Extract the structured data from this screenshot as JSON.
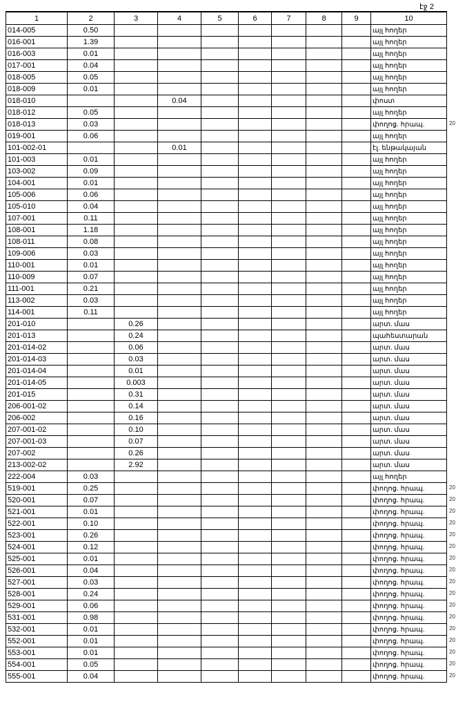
{
  "page_number": "էջ 2",
  "columns": [
    "1",
    "2",
    "3",
    "4",
    "5",
    "6",
    "7",
    "8",
    "9",
    "10"
  ],
  "rows": [
    [
      "014-005",
      "0.50",
      "",
      "",
      "",
      "",
      "",
      "",
      "",
      "այլ հողեր",
      ""
    ],
    [
      "016-001",
      "1.39",
      "",
      "",
      "",
      "",
      "",
      "",
      "",
      "այլ հողեր",
      ""
    ],
    [
      "016-003",
      "0.01",
      "",
      "",
      "",
      "",
      "",
      "",
      "",
      "այլ հողեր",
      ""
    ],
    [
      "017-001",
      "0.04",
      "",
      "",
      "",
      "",
      "",
      "",
      "",
      "այլ հողեր",
      ""
    ],
    [
      "018-005",
      "0.05",
      "",
      "",
      "",
      "",
      "",
      "",
      "",
      "այլ հողեր",
      ""
    ],
    [
      "018-009",
      "0.01",
      "",
      "",
      "",
      "",
      "",
      "",
      "",
      "այլ հողեր",
      ""
    ],
    [
      "018-010",
      "",
      "",
      "0.04",
      "",
      "",
      "",
      "",
      "",
      "փոստ",
      ""
    ],
    [
      "018-012",
      "0.05",
      "",
      "",
      "",
      "",
      "",
      "",
      "",
      "այլ հողեր",
      ""
    ],
    [
      "018-013",
      "0.03",
      "",
      "",
      "",
      "",
      "",
      "",
      "",
      "փողոց. հրապ.",
      "20"
    ],
    [
      "019-001",
      "0.06",
      "",
      "",
      "",
      "",
      "",
      "",
      "",
      "այլ հողեր",
      ""
    ],
    [
      "101-002-01",
      "",
      "",
      "0.01",
      "",
      "",
      "",
      "",
      "",
      "էլ. ենթակայան",
      ""
    ],
    [
      "101-003",
      "0.01",
      "",
      "",
      "",
      "",
      "",
      "",
      "",
      "այլ հողեր",
      ""
    ],
    [
      "103-002",
      "0.09",
      "",
      "",
      "",
      "",
      "",
      "",
      "",
      "այլ հողեր",
      ""
    ],
    [
      "104-001",
      "0.01",
      "",
      "",
      "",
      "",
      "",
      "",
      "",
      "այլ հողեր",
      ""
    ],
    [
      "105-006",
      "0.06",
      "",
      "",
      "",
      "",
      "",
      "",
      "",
      "այլ հողեր",
      ""
    ],
    [
      "105-010",
      "0.04",
      "",
      "",
      "",
      "",
      "",
      "",
      "",
      "այլ հողեր",
      ""
    ],
    [
      "107-001",
      "0.11",
      "",
      "",
      "",
      "",
      "",
      "",
      "",
      "այլ հողեր",
      ""
    ],
    [
      "108-001",
      "1.18",
      "",
      "",
      "",
      "",
      "",
      "",
      "",
      "այլ հողեր",
      ""
    ],
    [
      "108-011",
      "0.08",
      "",
      "",
      "",
      "",
      "",
      "",
      "",
      "այլ հողեր",
      ""
    ],
    [
      "109-006",
      "0.03",
      "",
      "",
      "",
      "",
      "",
      "",
      "",
      "այլ հողեր",
      ""
    ],
    [
      "110-001",
      "0.01",
      "",
      "",
      "",
      "",
      "",
      "",
      "",
      "այլ հողեր",
      ""
    ],
    [
      "110-009",
      "0.07",
      "",
      "",
      "",
      "",
      "",
      "",
      "",
      "այլ հողեր",
      ""
    ],
    [
      "111-001",
      "0.21",
      "",
      "",
      "",
      "",
      "",
      "",
      "",
      "այլ հողեր",
      ""
    ],
    [
      "113-002",
      "0.03",
      "",
      "",
      "",
      "",
      "",
      "",
      "",
      "այլ հողեր",
      ""
    ],
    [
      "114-001",
      "0.11",
      "",
      "",
      "",
      "",
      "",
      "",
      "",
      "այլ հողեր",
      ""
    ],
    [
      "201-010",
      "",
      "0.26",
      "",
      "",
      "",
      "",
      "",
      "",
      "արտ. մաս",
      ""
    ],
    [
      "201-013",
      "",
      "0.24",
      "",
      "",
      "",
      "",
      "",
      "",
      "պահեստարան",
      ""
    ],
    [
      "201-014-02",
      "",
      "0.06",
      "",
      "",
      "",
      "",
      "",
      "",
      "արտ. մաս",
      ""
    ],
    [
      "201-014-03",
      "",
      "0.03",
      "",
      "",
      "",
      "",
      "",
      "",
      "արտ. մաս",
      ""
    ],
    [
      "201-014-04",
      "",
      "0.01",
      "",
      "",
      "",
      "",
      "",
      "",
      "արտ. մաս",
      ""
    ],
    [
      "201-014-05",
      "",
      "0.003",
      "",
      "",
      "",
      "",
      "",
      "",
      "արտ. մաս",
      ""
    ],
    [
      "201-015",
      "",
      "0.31",
      "",
      "",
      "",
      "",
      "",
      "",
      "արտ. մաս",
      ""
    ],
    [
      "206-001-02",
      "",
      "0.14",
      "",
      "",
      "",
      "",
      "",
      "",
      "արտ. մաս",
      ""
    ],
    [
      "206-002",
      "",
      "0.16",
      "",
      "",
      "",
      "",
      "",
      "",
      "արտ. մաս",
      ""
    ],
    [
      "207-001-02",
      "",
      "0.10",
      "",
      "",
      "",
      "",
      "",
      "",
      "արտ. մաս",
      ""
    ],
    [
      "207-001-03",
      "",
      "0.07",
      "",
      "",
      "",
      "",
      "",
      "",
      "արտ. մաս",
      ""
    ],
    [
      "207-002",
      "",
      "0.26",
      "",
      "",
      "",
      "",
      "",
      "",
      "արտ. մաս",
      ""
    ],
    [
      "213-002-02",
      "",
      "2.92",
      "",
      "",
      "",
      "",
      "",
      "",
      "արտ. մաս",
      ""
    ],
    [
      "222-004",
      "0.03",
      "",
      "",
      "",
      "",
      "",
      "",
      "",
      "այլ հողեր",
      ""
    ],
    [
      "519-001",
      "0.25",
      "",
      "",
      "",
      "",
      "",
      "",
      "",
      "փողոց. հրապ.",
      "20"
    ],
    [
      "520-001",
      "0.07",
      "",
      "",
      "",
      "",
      "",
      "",
      "",
      "փողոց. հրապ.",
      "20"
    ],
    [
      "521-001",
      "0.01",
      "",
      "",
      "",
      "",
      "",
      "",
      "",
      "փողոց. հրապ.",
      "20"
    ],
    [
      "522-001",
      "0.10",
      "",
      "",
      "",
      "",
      "",
      "",
      "",
      "փողոց. հրապ.",
      "20"
    ],
    [
      "523-001",
      "0.26",
      "",
      "",
      "",
      "",
      "",
      "",
      "",
      "փողոց. հրապ.",
      "20"
    ],
    [
      "524-001",
      "0.12",
      "",
      "",
      "",
      "",
      "",
      "",
      "",
      "փողոց. հրապ.",
      "20"
    ],
    [
      "525-001",
      "0.01",
      "",
      "",
      "",
      "",
      "",
      "",
      "",
      "փողոց. հրապ.",
      "20"
    ],
    [
      "526-001",
      "0.04",
      "",
      "",
      "",
      "",
      "",
      "",
      "",
      "փողոց. հրապ.",
      "20"
    ],
    [
      "527-001",
      "0.03",
      "",
      "",
      "",
      "",
      "",
      "",
      "",
      "փողոց. հրապ.",
      "20"
    ],
    [
      "528-001",
      "0.24",
      "",
      "",
      "",
      "",
      "",
      "",
      "",
      "փողոց. հրապ.",
      "20"
    ],
    [
      "529-001",
      "0.06",
      "",
      "",
      "",
      "",
      "",
      "",
      "",
      "փողոց. հրապ.",
      "20"
    ],
    [
      "531-001",
      "0.98",
      "",
      "",
      "",
      "",
      "",
      "",
      "",
      "փողոց. հրապ.",
      "20"
    ],
    [
      "532-001",
      "0.01",
      "",
      "",
      "",
      "",
      "",
      "",
      "",
      "փողոց. հրապ.",
      "20"
    ],
    [
      "552-001",
      "0.01",
      "",
      "",
      "",
      "",
      "",
      "",
      "",
      "փողոց. հրապ.",
      "20"
    ],
    [
      "553-001",
      "0.01",
      "",
      "",
      "",
      "",
      "",
      "",
      "",
      "փողոց. հրապ.",
      "20"
    ],
    [
      "554-001",
      "0.05",
      "",
      "",
      "",
      "",
      "",
      "",
      "",
      "փողոց. հրապ.",
      "20"
    ],
    [
      "555-001",
      "0.04",
      "",
      "",
      "",
      "",
      "",
      "",
      "",
      "փողոց. հրապ.",
      "20"
    ]
  ]
}
